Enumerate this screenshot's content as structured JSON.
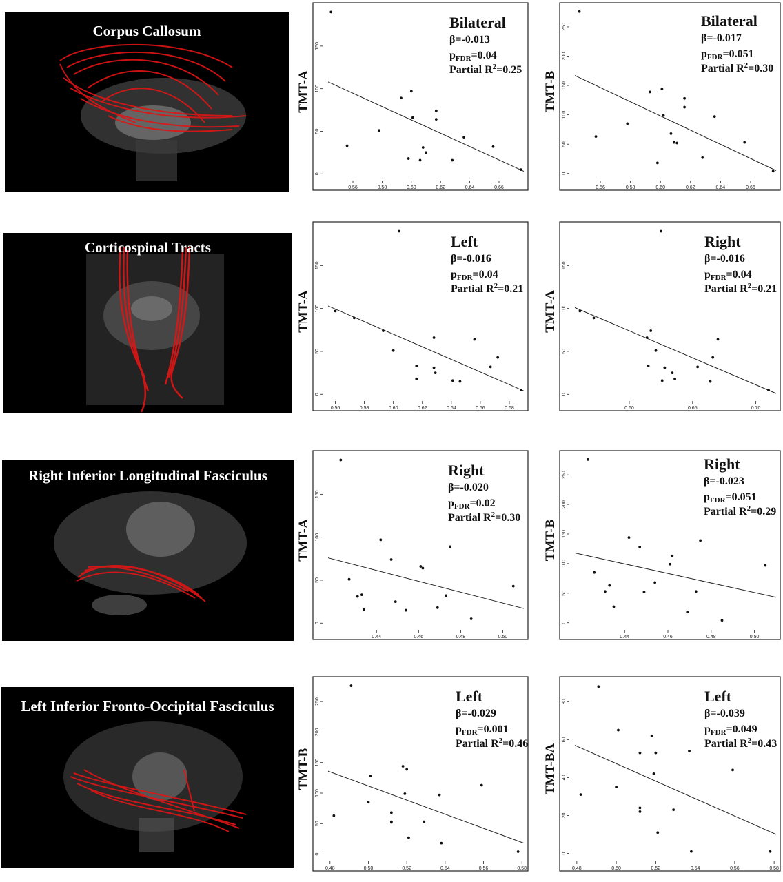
{
  "rows": [
    {
      "title": "Corpus Callosum"
    },
    {
      "title": "Corticospinal Tracts"
    },
    {
      "title": "Right Inferior Longitudinal Fasciculus"
    },
    {
      "title": "Left Inferior Fronto-Occipital Fasciculus"
    }
  ],
  "colors": {
    "tract": "#e01515",
    "point": "#111111",
    "frame": "#222222"
  },
  "chart_data": [
    {
      "type": "scatter",
      "ylabel": "TMT-A",
      "annotation": {
        "side": "Bilateral",
        "beta": "β=-0.013",
        "p_prefix": "p",
        "p_sub": "FDR",
        "p_value": "=0.04",
        "r2_prefix": "Partial R",
        "r2_sup": "2",
        "r2_value": "=0.25"
      },
      "xlim": [
        0.543,
        0.677
      ],
      "ylim": [
        -3,
        196
      ],
      "xticks": [
        0.56,
        0.58,
        0.6,
        0.62,
        0.64,
        0.66
      ],
      "xtick_labels": [
        "0.56",
        "0.58",
        "0.60",
        "0.62",
        "0.64",
        "0.66"
      ],
      "yticks": [
        0,
        50,
        100,
        150
      ],
      "ytick_labels": [
        "0",
        "50",
        "100",
        "150"
      ],
      "points": [
        [
          0.545,
          190
        ],
        [
          0.556,
          33
        ],
        [
          0.578,
          51
        ],
        [
          0.593,
          89
        ],
        [
          0.598,
          18
        ],
        [
          0.6,
          97
        ],
        [
          0.601,
          66
        ],
        [
          0.606,
          16
        ],
        [
          0.608,
          31
        ],
        [
          0.61,
          25
        ],
        [
          0.617,
          74
        ],
        [
          0.617,
          64
        ],
        [
          0.628,
          16
        ],
        [
          0.636,
          43
        ],
        [
          0.656,
          32
        ],
        [
          0.675,
          5
        ]
      ],
      "fit": [
        [
          0.543,
          108
        ],
        [
          0.677,
          3
        ]
      ]
    },
    {
      "type": "scatter",
      "ylabel": "TMT-B",
      "annotation": {
        "side": "Bilateral",
        "beta": "β=-0.017",
        "p_prefix": "p",
        "p_sub": "FDR",
        "p_value": "=0.051",
        "r2_prefix": "Partial R",
        "r2_sup": "2",
        "r2_value": "=0.30"
      },
      "xlim": [
        0.543,
        0.677
      ],
      "ylim": [
        -5,
        284
      ],
      "xticks": [
        0.56,
        0.58,
        0.6,
        0.62,
        0.64,
        0.66
      ],
      "xtick_labels": [
        "0.56",
        "0.58",
        "0.60",
        "0.62",
        "0.64",
        "0.66"
      ],
      "yticks": [
        0,
        50,
        100,
        150,
        200,
        250
      ],
      "ytick_labels": [
        "0",
        "50",
        "100",
        "150",
        "200",
        "250"
      ],
      "points": [
        [
          0.546,
          276
        ],
        [
          0.557,
          63
        ],
        [
          0.578,
          85
        ],
        [
          0.593,
          139
        ],
        [
          0.598,
          18
        ],
        [
          0.601,
          144
        ],
        [
          0.602,
          99
        ],
        [
          0.607,
          68
        ],
        [
          0.609,
          53
        ],
        [
          0.611,
          52
        ],
        [
          0.616,
          128
        ],
        [
          0.616,
          113
        ],
        [
          0.628,
          27
        ],
        [
          0.636,
          97
        ],
        [
          0.656,
          53
        ],
        [
          0.675,
          4
        ]
      ],
      "fit": [
        [
          0.543,
          167
        ],
        [
          0.677,
          5
        ]
      ]
    },
    {
      "type": "scatter",
      "ylabel": "TMT-A",
      "annotation": {
        "side": "Left",
        "beta": "β=-0.016",
        "p_prefix": "p",
        "p_sub": "FDR",
        "p_value": "=0.04",
        "r2_prefix": "Partial R",
        "r2_sup": "2",
        "r2_value": "=0.21"
      },
      "xlim": [
        0.555,
        0.69
      ],
      "ylim": [
        -3,
        196
      ],
      "xticks": [
        0.56,
        0.58,
        0.6,
        0.62,
        0.64,
        0.66,
        0.68
      ],
      "xtick_labels": [
        "0.56",
        "0.58",
        "0.60",
        "0.62",
        "0.64",
        "0.66",
        "0.68"
      ],
      "yticks": [
        0,
        50,
        100,
        150
      ],
      "ytick_labels": [
        "0",
        "50",
        "100",
        "150"
      ],
      "points": [
        [
          0.56,
          97
        ],
        [
          0.573,
          89
        ],
        [
          0.593,
          74
        ],
        [
          0.6,
          51
        ],
        [
          0.604,
          190
        ],
        [
          0.616,
          33
        ],
        [
          0.616,
          18
        ],
        [
          0.628,
          66
        ],
        [
          0.628,
          31
        ],
        [
          0.629,
          25
        ],
        [
          0.641,
          16
        ],
        [
          0.646,
          15
        ],
        [
          0.656,
          64
        ],
        [
          0.667,
          32
        ],
        [
          0.672,
          43
        ],
        [
          0.688,
          5
        ]
      ],
      "fit": [
        [
          0.555,
          103
        ],
        [
          0.69,
          4
        ]
      ]
    },
    {
      "type": "scatter",
      "ylabel": "TMT-A",
      "annotation": {
        "side": "Right",
        "beta": "β=-0.016",
        "p_prefix": "p",
        "p_sub": "FDR",
        "p_value": "=0.04",
        "r2_prefix": "Partial R",
        "r2_sup": "2",
        "r2_value": "=0.21"
      },
      "xlim": [
        0.557,
        0.716
      ],
      "ylim": [
        -3,
        196
      ],
      "xticks": [
        0.6,
        0.65,
        0.7
      ],
      "xtick_labels": [
        "0.60",
        "0.65",
        "0.70"
      ],
      "yticks": [
        0,
        50,
        100,
        150
      ],
      "ytick_labels": [
        "0",
        "50",
        "100",
        "150"
      ],
      "points": [
        [
          0.561,
          97
        ],
        [
          0.572,
          89
        ],
        [
          0.614,
          66
        ],
        [
          0.615,
          33
        ],
        [
          0.617,
          74
        ],
        [
          0.621,
          51
        ],
        [
          0.625,
          190
        ],
        [
          0.626,
          16
        ],
        [
          0.628,
          31
        ],
        [
          0.634,
          25
        ],
        [
          0.636,
          18
        ],
        [
          0.654,
          32
        ],
        [
          0.664,
          15
        ],
        [
          0.666,
          43
        ],
        [
          0.67,
          64
        ],
        [
          0.71,
          5
        ]
      ],
      "fit": [
        [
          0.557,
          101
        ],
        [
          0.716,
          1
        ]
      ]
    },
    {
      "type": "scatter",
      "ylabel": "TMT-A",
      "annotation": {
        "side": "Right",
        "beta": "β=-0.020",
        "p_prefix": "p",
        "p_sub": "FDR",
        "p_value": "=0.02",
        "r2_prefix": "Partial R",
        "r2_sup": "2",
        "r2_value": "=0.30"
      },
      "xlim": [
        0.417,
        0.51
      ],
      "ylim": [
        -3,
        196
      ],
      "xticks": [
        0.44,
        0.46,
        0.48,
        0.5
      ],
      "xtick_labels": [
        "0.44",
        "0.46",
        "0.48",
        "0.50"
      ],
      "yticks": [
        0,
        50,
        100,
        150
      ],
      "ytick_labels": [
        "0",
        "50",
        "100",
        "150"
      ],
      "points": [
        [
          0.423,
          190
        ],
        [
          0.427,
          51
        ],
        [
          0.431,
          31
        ],
        [
          0.433,
          33
        ],
        [
          0.434,
          16
        ],
        [
          0.442,
          97
        ],
        [
          0.447,
          74
        ],
        [
          0.449,
          25
        ],
        [
          0.454,
          15
        ],
        [
          0.461,
          66
        ],
        [
          0.462,
          64
        ],
        [
          0.469,
          18
        ],
        [
          0.473,
          32
        ],
        [
          0.475,
          89
        ],
        [
          0.485,
          5
        ],
        [
          0.505,
          43
        ]
      ],
      "fit": [
        [
          0.417,
          76
        ],
        [
          0.51,
          17
        ]
      ]
    },
    {
      "type": "scatter",
      "ylabel": "TMT-B",
      "annotation": {
        "side": "Right",
        "beta": "β=-0.023",
        "p_prefix": "p",
        "p_sub": "FDR",
        "p_value": "=0.051",
        "r2_prefix": "Partial R",
        "r2_sup": "2",
        "r2_value": "=0.29"
      },
      "xlim": [
        0.417,
        0.51
      ],
      "ylim": [
        -5,
        284
      ],
      "xticks": [
        0.44,
        0.46,
        0.48,
        0.5
      ],
      "xtick_labels": [
        "0.44",
        "0.46",
        "0.48",
        "0.50"
      ],
      "yticks": [
        0,
        50,
        100,
        150,
        200,
        250
      ],
      "ytick_labels": [
        "0",
        "50",
        "100",
        "150",
        "200",
        "250"
      ],
      "points": [
        [
          0.423,
          276
        ],
        [
          0.426,
          85
        ],
        [
          0.431,
          53
        ],
        [
          0.433,
          63
        ],
        [
          0.435,
          27
        ],
        [
          0.442,
          144
        ],
        [
          0.447,
          128
        ],
        [
          0.449,
          52
        ],
        [
          0.454,
          68
        ],
        [
          0.461,
          99
        ],
        [
          0.462,
          113
        ],
        [
          0.469,
          18
        ],
        [
          0.473,
          53
        ],
        [
          0.475,
          139
        ],
        [
          0.485,
          4
        ],
        [
          0.505,
          97
        ]
      ],
      "fit": [
        [
          0.417,
          118
        ],
        [
          0.51,
          43
        ]
      ]
    },
    {
      "type": "scatter",
      "ylabel": "TMT-B",
      "annotation": {
        "side": "Left",
        "beta": "β=-0.029",
        "p_prefix": "p",
        "p_sub": "FDR",
        "p_value": "=0.001",
        "r2_prefix": "Partial R",
        "r2_sup": "2",
        "r2_value": "=0.46"
      },
      "xlim": [
        0.479,
        0.581
      ],
      "ylim": [
        -5,
        284
      ],
      "xticks": [
        0.48,
        0.5,
        0.52,
        0.54,
        0.56,
        0.58
      ],
      "xtick_labels": [
        "0.48",
        "0.50",
        "0.52",
        "0.54",
        "0.56",
        "0.58"
      ],
      "yticks": [
        0,
        50,
        100,
        150,
        200,
        250
      ],
      "ytick_labels": [
        "0",
        "50",
        "100",
        "150",
        "200",
        "250"
      ],
      "points": [
        [
          0.482,
          63
        ],
        [
          0.491,
          276
        ],
        [
          0.5,
          85
        ],
        [
          0.501,
          128
        ],
        [
          0.512,
          68
        ],
        [
          0.512,
          53
        ],
        [
          0.512,
          52
        ],
        [
          0.518,
          144
        ],
        [
          0.519,
          99
        ],
        [
          0.52,
          139
        ],
        [
          0.521,
          27
        ],
        [
          0.529,
          53
        ],
        [
          0.537,
          97
        ],
        [
          0.538,
          18
        ],
        [
          0.559,
          113
        ],
        [
          0.578,
          4
        ]
      ],
      "fit": [
        [
          0.479,
          136
        ],
        [
          0.581,
          18
        ]
      ]
    },
    {
      "type": "scatter",
      "ylabel": "TMT-BA",
      "annotation": {
        "side": "Left",
        "beta": "β=-0.039",
        "p_prefix": "p",
        "p_sub": "FDR",
        "p_value": "=0.049",
        "r2_prefix": "Partial R",
        "r2_sup": "2",
        "r2_value": "=0.43"
      },
      "xlim": [
        0.479,
        0.581
      ],
      "ylim": [
        -2,
        91
      ],
      "xticks": [
        0.48,
        0.5,
        0.52,
        0.54,
        0.56,
        0.58
      ],
      "xtick_labels": [
        "0.48",
        "0.50",
        "0.52",
        "0.54",
        "0.56",
        "0.58"
      ],
      "yticks": [
        0,
        20,
        40,
        60,
        80
      ],
      "ytick_labels": [
        "0",
        "20",
        "40",
        "60",
        "80"
      ],
      "points": [
        [
          0.482,
          31
        ],
        [
          0.491,
          88
        ],
        [
          0.5,
          35
        ],
        [
          0.501,
          65
        ],
        [
          0.512,
          53
        ],
        [
          0.512,
          24
        ],
        [
          0.512,
          22
        ],
        [
          0.518,
          62
        ],
        [
          0.519,
          42
        ],
        [
          0.52,
          53
        ],
        [
          0.521,
          11
        ],
        [
          0.529,
          23
        ],
        [
          0.537,
          54
        ],
        [
          0.538,
          1
        ],
        [
          0.559,
          44
        ],
        [
          0.578,
          1
        ]
      ],
      "fit": [
        [
          0.479,
          57
        ],
        [
          0.581,
          10
        ]
      ]
    }
  ]
}
